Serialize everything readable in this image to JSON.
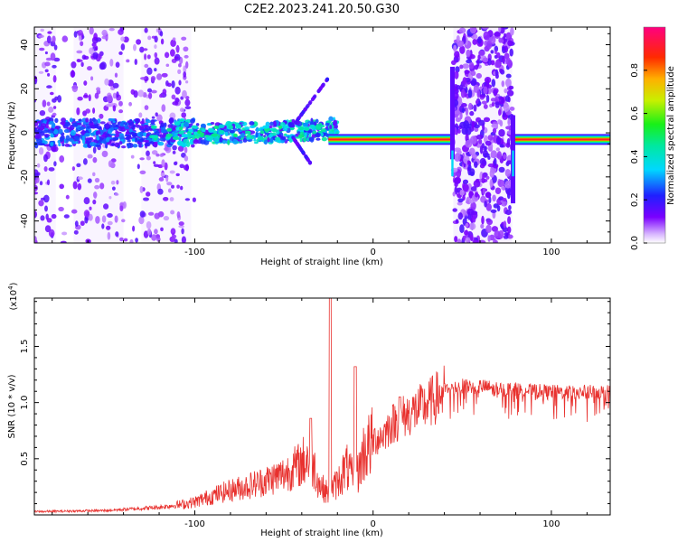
{
  "figure": {
    "title": "C2E2.2023.241.20.50.G30"
  },
  "chart_data": [
    {
      "type": "heatmap",
      "xlabel": "Height of straight line (km)",
      "ylabel": "Frequency (Hz)",
      "xlim": [
        -190,
        133
      ],
      "ylim": [
        -50,
        48
      ],
      "xticks": [
        -100,
        0,
        100
      ],
      "yticks": [
        -40,
        -20,
        0,
        20,
        40
      ],
      "colorbar": {
        "label": "Normalized spectral amplitude",
        "range": [
          0,
          1
        ],
        "ticks": [
          0.0,
          0.2,
          0.4,
          0.6,
          0.8
        ],
        "tick_labels": [
          "0.0",
          "0.2",
          "0.4",
          "0.6",
          "0.8"
        ]
      },
      "features": [
        {
          "x_range": [
            -190,
            -100
          ],
          "description": "broadband noise speckle"
        },
        {
          "x_range": [
            -100,
            -25
          ],
          "description": "noisy carrier near 0 Hz"
        },
        {
          "x_range": [
            -25,
            44
          ],
          "description": "clean carrier near -3 Hz"
        },
        {
          "x_range": [
            45,
            78
          ],
          "description": "broadband noise band"
        },
        {
          "x_range": [
            78,
            133
          ],
          "description": "clean carrier near -3 Hz"
        }
      ]
    },
    {
      "type": "line",
      "xlabel": "Height of straight line (km)",
      "ylabel": "SNR (10 * v/v)",
      "y_multiplier": "(x10",
      "y_multiplier_exp": "4",
      "y_multiplier_close": ")",
      "xlim": [
        -190,
        133
      ],
      "ylim": [
        0,
        19300
      ],
      "xticks": [
        -100,
        0,
        100
      ],
      "yticks": [
        5000,
        10000,
        15000
      ],
      "ytick_labels": [
        "0.5",
        "1.0",
        "1.5"
      ],
      "series": [
        {
          "color": "#e8312e",
          "x": [
            -190,
            -170,
            -150,
            -140,
            -130,
            -120,
            -110,
            -100,
            -90,
            -80,
            -70,
            -60,
            -50,
            -40,
            -35,
            -30,
            -25,
            -20,
            -15,
            -10,
            -5,
            0,
            5,
            10,
            15,
            20,
            30,
            40,
            50,
            60,
            70,
            80,
            90,
            100,
            110,
            120,
            133
          ],
          "y": [
            300,
            350,
            400,
            500,
            600,
            700,
            900,
            1200,
            1800,
            2300,
            2700,
            3200,
            3800,
            4800,
            5600,
            2800,
            2000,
            3000,
            4500,
            3000,
            6000,
            6800,
            7200,
            8200,
            8800,
            9200,
            10000,
            11200,
            11500,
            11500,
            11300,
            11200,
            11100,
            11000,
            11000,
            11000,
            11000
          ]
        }
      ],
      "peaks": [
        {
          "x": -24,
          "y": 19300
        },
        {
          "x": -10,
          "y": 13200
        },
        {
          "x": -35,
          "y": 8600
        },
        {
          "x": 15,
          "y": 10500
        }
      ]
    }
  ]
}
